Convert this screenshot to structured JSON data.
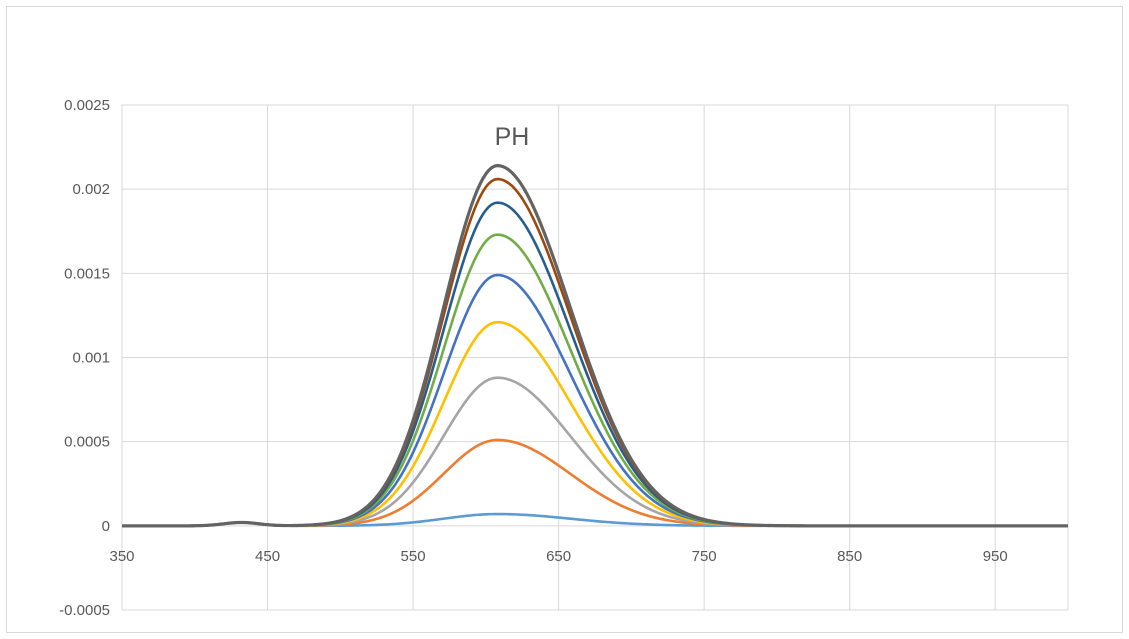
{
  "chart_data": {
    "type": "line",
    "title": "PH",
    "xlabel": "",
    "ylabel": "",
    "xlim": [
      350,
      1000
    ],
    "ylim": [
      -0.0005,
      0.0025
    ],
    "x_ticks": [
      350,
      450,
      550,
      650,
      750,
      850,
      950
    ],
    "x_tick_labels": [
      "350",
      "450",
      "550",
      "650",
      "750",
      "850",
      "950"
    ],
    "y_ticks": [
      -0.0005,
      0,
      0.0005,
      0.001,
      0.0015,
      0.002,
      0.0025
    ],
    "y_tick_labels": [
      "-0.0005",
      "0",
      "0.0005",
      "0.001",
      "0.0015",
      "0.002",
      "0.0025"
    ],
    "grid": true,
    "legend": "none",
    "peak_x": 608,
    "series": [
      {
        "color": "#5b9bd5",
        "peak": 7e-05
      },
      {
        "color": "#ed7d31",
        "peak": 0.00051
      },
      {
        "color": "#a5a5a5",
        "peak": 0.00088
      },
      {
        "color": "#ffc000",
        "peak": 0.00121
      },
      {
        "color": "#4472c4",
        "peak": 0.00149
      },
      {
        "color": "#70ad47",
        "peak": 0.00173
      },
      {
        "color": "#255e91",
        "peak": 0.00192
      },
      {
        "color": "#9e480e",
        "peak": 0.00206
      },
      {
        "color": "#636363",
        "peak": 0.00214
      }
    ]
  }
}
